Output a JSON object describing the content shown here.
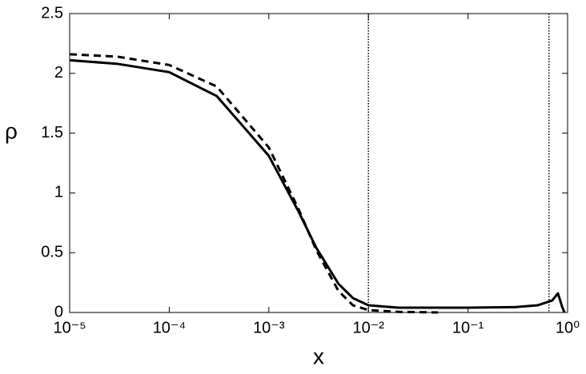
{
  "chart_data": {
    "type": "line",
    "x_label": "x",
    "y_label": "ρ",
    "xscale": "log",
    "xlim": [
      1e-05,
      1
    ],
    "ylim": [
      0,
      2.5
    ],
    "xticks": [
      {
        "value": 1e-05,
        "label": "10⁻⁵"
      },
      {
        "value": 0.0001,
        "label": "10⁻⁴"
      },
      {
        "value": 0.001,
        "label": "10⁻³"
      },
      {
        "value": 0.01,
        "label": "10⁻²"
      },
      {
        "value": 0.1,
        "label": "10⁻¹"
      },
      {
        "value": 1,
        "label": "10⁰"
      }
    ],
    "yticks": [
      0,
      0.5,
      1,
      1.5,
      2,
      2.5
    ],
    "vlines": [
      0.01,
      0.65
    ],
    "series": [
      {
        "color": "#000000",
        "style": "solid",
        "x": [
          1e-05,
          3e-05,
          0.0001,
          0.0003,
          0.001,
          0.002,
          0.003,
          0.005,
          0.007,
          0.01,
          0.02,
          0.1,
          0.3,
          0.5,
          0.7,
          0.8,
          0.88,
          0.93
        ],
        "values": [
          2.11,
          2.08,
          2.01,
          1.81,
          1.31,
          0.84,
          0.54,
          0.24,
          0.12,
          0.06,
          0.04,
          0.04,
          0.045,
          0.06,
          0.1,
          0.16,
          0.05,
          0
        ]
      },
      {
        "color": "#000000",
        "style": "dashed",
        "x": [
          1e-05,
          3e-05,
          0.0001,
          0.0003,
          0.001,
          0.002,
          0.003,
          0.005,
          0.007,
          0.01,
          0.02,
          0.05
        ],
        "values": [
          2.16,
          2.14,
          2.07,
          1.89,
          1.38,
          0.86,
          0.52,
          0.18,
          0.06,
          0.02,
          0.005,
          0
        ]
      }
    ]
  }
}
